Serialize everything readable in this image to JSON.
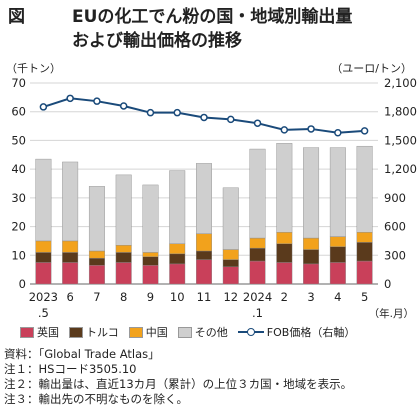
{
  "title": {
    "fig": "図",
    "line1": "EUの化工でん粉の国・地域別輸出量",
    "line2": "および輸出価格の推移"
  },
  "axis": {
    "left_unit": "（千トン）",
    "right_unit": "（ユーロ/トン）",
    "x_unit": "（年.月）"
  },
  "notes": [
    "資料：「Global Trade Atlas」",
    "注１：HSコード3505.10",
    "注２：輸出量は、直近13カ月（累計）の上位３カ国・地域を表示。",
    "注３：輸出先の不明なものを除く。"
  ],
  "chart_data": {
    "type": "bar",
    "stacked": true,
    "categories": [
      "2023.5",
      "6",
      "7",
      "8",
      "9",
      "10",
      "11",
      "12",
      "2024.1",
      "2",
      "3",
      "4",
      "5"
    ],
    "category_labels": [
      {
        "top": "2023",
        "bottom": ".5"
      },
      {
        "top": "6",
        "bottom": ""
      },
      {
        "top": "7",
        "bottom": ""
      },
      {
        "top": "8",
        "bottom": ""
      },
      {
        "top": "9",
        "bottom": ""
      },
      {
        "top": "10",
        "bottom": ""
      },
      {
        "top": "11",
        "bottom": ""
      },
      {
        "top": "12",
        "bottom": ""
      },
      {
        "top": "2024",
        "bottom": ".1"
      },
      {
        "top": "2",
        "bottom": ""
      },
      {
        "top": "3",
        "bottom": ""
      },
      {
        "top": "4",
        "bottom": ""
      },
      {
        "top": "5",
        "bottom": ""
      }
    ],
    "series": [
      {
        "name": "英国",
        "color": "#c9405a",
        "values": [
          7.5,
          7.5,
          6.5,
          7.5,
          6.5,
          7.0,
          8.5,
          6.0,
          8.0,
          7.5,
          7.0,
          7.5,
          8.0
        ]
      },
      {
        "name": "トルコ",
        "color": "#5a3a1c",
        "values": [
          3.5,
          3.5,
          2.5,
          3.5,
          3.0,
          3.5,
          3.0,
          2.5,
          4.5,
          6.5,
          5.0,
          5.5,
          6.5
        ]
      },
      {
        "name": "中国",
        "color": "#f2a21c",
        "values": [
          4.0,
          4.0,
          2.5,
          2.5,
          1.5,
          3.5,
          6.0,
          3.5,
          3.5,
          4.0,
          4.0,
          3.5,
          3.5
        ]
      },
      {
        "name": "その他",
        "color": "#cfcfcf",
        "values": [
          28.5,
          27.5,
          22.5,
          24.5,
          23.5,
          25.5,
          24.5,
          21.5,
          31.0,
          31.0,
          31.5,
          31.0,
          30.0
        ]
      }
    ],
    "line_series": {
      "name": "FOB価格（右軸）",
      "color": "#1a4a7a",
      "values": [
        1850,
        1940,
        1910,
        1860,
        1790,
        1790,
        1740,
        1720,
        1680,
        1610,
        1620,
        1580,
        1600
      ]
    },
    "y_left": {
      "min": 0,
      "max": 70,
      "ticks": [
        0,
        10,
        20,
        30,
        40,
        50,
        60,
        70
      ]
    },
    "y_right": {
      "min": 0,
      "max": 2100,
      "ticks": [
        "0",
        "300",
        "600",
        "900",
        "1,200",
        "1,500",
        "1,800",
        "2,100"
      ]
    },
    "legend_position": "bottom",
    "grid": true
  }
}
